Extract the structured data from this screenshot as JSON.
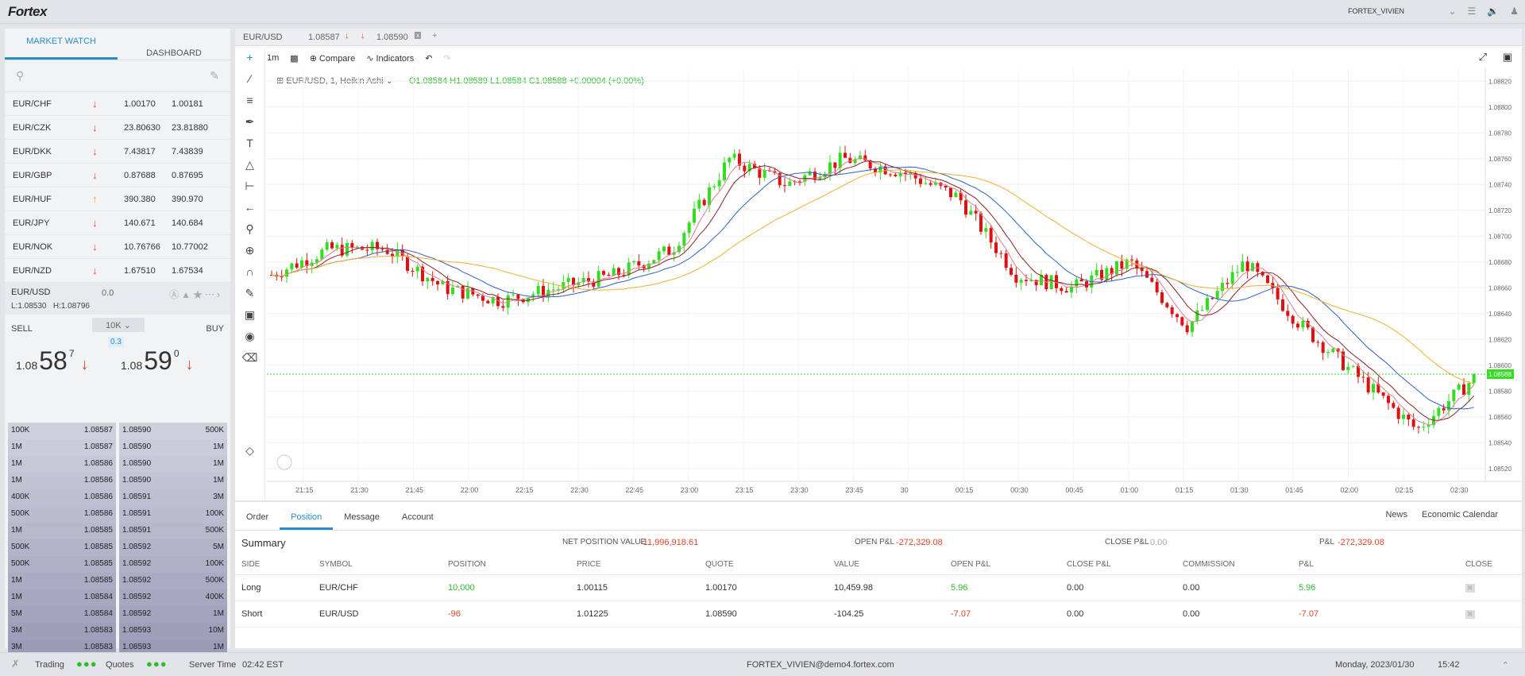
{
  "app": {
    "logo": "Fortex",
    "user": "FORTEX_VIVIEN"
  },
  "left": {
    "tabs": [
      "MARKET WATCH",
      "DASHBOARD"
    ],
    "rows": [
      {
        "sym": "EUR/CHF",
        "dir": "down",
        "bid": "1.00170",
        "ask": "1.00181"
      },
      {
        "sym": "EUR/CZK",
        "dir": "down",
        "bid": "23.80630",
        "ask": "23.81880"
      },
      {
        "sym": "EUR/DKK",
        "dir": "down",
        "bid": "7.43817",
        "ask": "7.43839"
      },
      {
        "sym": "EUR/GBP",
        "dir": "down",
        "bid": "0.87688",
        "ask": "0.87695"
      },
      {
        "sym": "EUR/HUF",
        "dir": "up",
        "bid": "390.380",
        "ask": "390.970"
      },
      {
        "sym": "EUR/JPY",
        "dir": "down",
        "bid": "140.671",
        "ask": "140.684"
      },
      {
        "sym": "EUR/NOK",
        "dir": "down",
        "bid": "10.76766",
        "ask": "10.77002"
      },
      {
        "sym": "EUR/NZD",
        "dir": "down",
        "bid": "1.67510",
        "ask": "1.67534"
      }
    ],
    "selected": {
      "sym": "EUR/USD",
      "change": "0.0",
      "low": "L:1.08530",
      "high": "H:1.08796"
    },
    "trade": {
      "sell": "SELL",
      "buy": "BUY",
      "amount": "10K",
      "spread": "0.3",
      "sell_p1": "1.08",
      "sell_p2": "58",
      "sell_p3": "7",
      "buy_p1": "1.08",
      "buy_p2": "59",
      "buy_p3": "0"
    }
  },
  "book": {
    "sell": [
      [
        "100K",
        "1.08587"
      ],
      [
        "1M",
        "1.08587"
      ],
      [
        "1M",
        "1.08586"
      ],
      [
        "1M",
        "1.08586"
      ],
      [
        "400K",
        "1.08586"
      ],
      [
        "500K",
        "1.08586"
      ],
      [
        "1M",
        "1.08585"
      ],
      [
        "500K",
        "1.08585"
      ],
      [
        "500K",
        "1.08585"
      ],
      [
        "1M",
        "1.08585"
      ],
      [
        "1M",
        "1.08584"
      ],
      [
        "5M",
        "1.08584"
      ],
      [
        "3M",
        "1.08583"
      ],
      [
        "3M",
        "1.08583"
      ]
    ],
    "buy": [
      [
        "1.08590",
        "500K"
      ],
      [
        "1.08590",
        "1M"
      ],
      [
        "1.08590",
        "1M"
      ],
      [
        "1.08590",
        "1M"
      ],
      [
        "1.08591",
        "3M"
      ],
      [
        "1.08591",
        "100K"
      ],
      [
        "1.08591",
        "500K"
      ],
      [
        "1.08592",
        "5M"
      ],
      [
        "1.08592",
        "100K"
      ],
      [
        "1.08592",
        "500K"
      ],
      [
        "1.08592",
        "400K"
      ],
      [
        "1.08592",
        "1M"
      ],
      [
        "1.08593",
        "10M"
      ],
      [
        "1.08593",
        "1M"
      ]
    ]
  },
  "chart": {
    "tab": "EUR/USD",
    "tab_bid": "1.08587",
    "tab_ask": "1.08590",
    "interval": "1m",
    "compare": "Compare",
    "indicators": "Indicators",
    "legend_title": "EUR/USD, 1, Heikin Ashi",
    "ohlc": "O1.08584 H1.08589 L1.08584 C1.08588 +0.00004 (+0.00%)",
    "price_label": "1.08588"
  },
  "chart_data": {
    "type": "line",
    "title": "EUR/USD, 1, Heikin Ashi",
    "x": [
      "21:15",
      "21:30",
      "21:45",
      "22:00",
      "22:15",
      "22:30",
      "22:45",
      "23:00",
      "23:15",
      "23:30",
      "23:45",
      "30",
      "00:15",
      "00:30",
      "00:45",
      "01:00",
      "01:15",
      "01:30",
      "01:45",
      "02:00",
      "02:15",
      "02:30"
    ],
    "ylim": [
      1.0851,
      1.0883
    ],
    "yticks": [
      "1.08820",
      "1.08800",
      "1.08780",
      "1.08760",
      "1.08740",
      "1.08720",
      "1.08700",
      "1.08680",
      "1.08660",
      "1.08640",
      "1.08620",
      "1.08600",
      "1.08580",
      "1.08560",
      "1.08540",
      "1.08520"
    ],
    "series": [
      {
        "values": [
          1.0867,
          1.0869,
          1.0869,
          1.0866,
          1.0865,
          1.0866,
          1.0867,
          1.0869,
          1.0876,
          1.0874,
          1.0876,
          1.0875,
          1.0873,
          1.0867,
          1.0866,
          1.0868,
          1.0863,
          1.0868,
          1.0863,
          1.0859,
          1.0855,
          1.0859
        ]
      }
    ]
  },
  "panel": {
    "tabs": [
      "Order",
      "Position",
      "Message",
      "Account"
    ],
    "right": [
      "News",
      "Economic Calendar"
    ],
    "summary": "Summary",
    "npv_label": "NET POSITION VALUE",
    "npv": "-11,996,918.61",
    "opl_label": "OPEN P&L",
    "opl": "-272,329.08",
    "cpl_label": "CLOSE P&L",
    "cpl": "0.00",
    "pl_label": "P&L",
    "pl": "-272,329.08",
    "headers": [
      "SIDE",
      "SYMBOL",
      "POSITION",
      "PRICE",
      "QUOTE",
      "VALUE",
      "OPEN P&L",
      "CLOSE P&L",
      "COMMISSION",
      "P&L",
      "CLOSE"
    ],
    "rows": [
      [
        "Long",
        "EUR/CHF",
        "10,000",
        "1.00115",
        "1.00170",
        "10,459.98",
        "5.96",
        "0.00",
        "0.00",
        "5.96"
      ],
      [
        "Short",
        "EUR/USD",
        "-96",
        "1.01225",
        "1.08590",
        "-104.25",
        "-7.07",
        "0.00",
        "0.00",
        "-7.07"
      ]
    ]
  },
  "status": {
    "trading": "Trading",
    "quotes": "Quotes",
    "server_label": "Server Time",
    "server_time": "02:42 EST",
    "account": "FORTEX_VIVIEN@demo4.fortex.com",
    "date": "Monday, 2023/01/30",
    "time": "15:42"
  }
}
